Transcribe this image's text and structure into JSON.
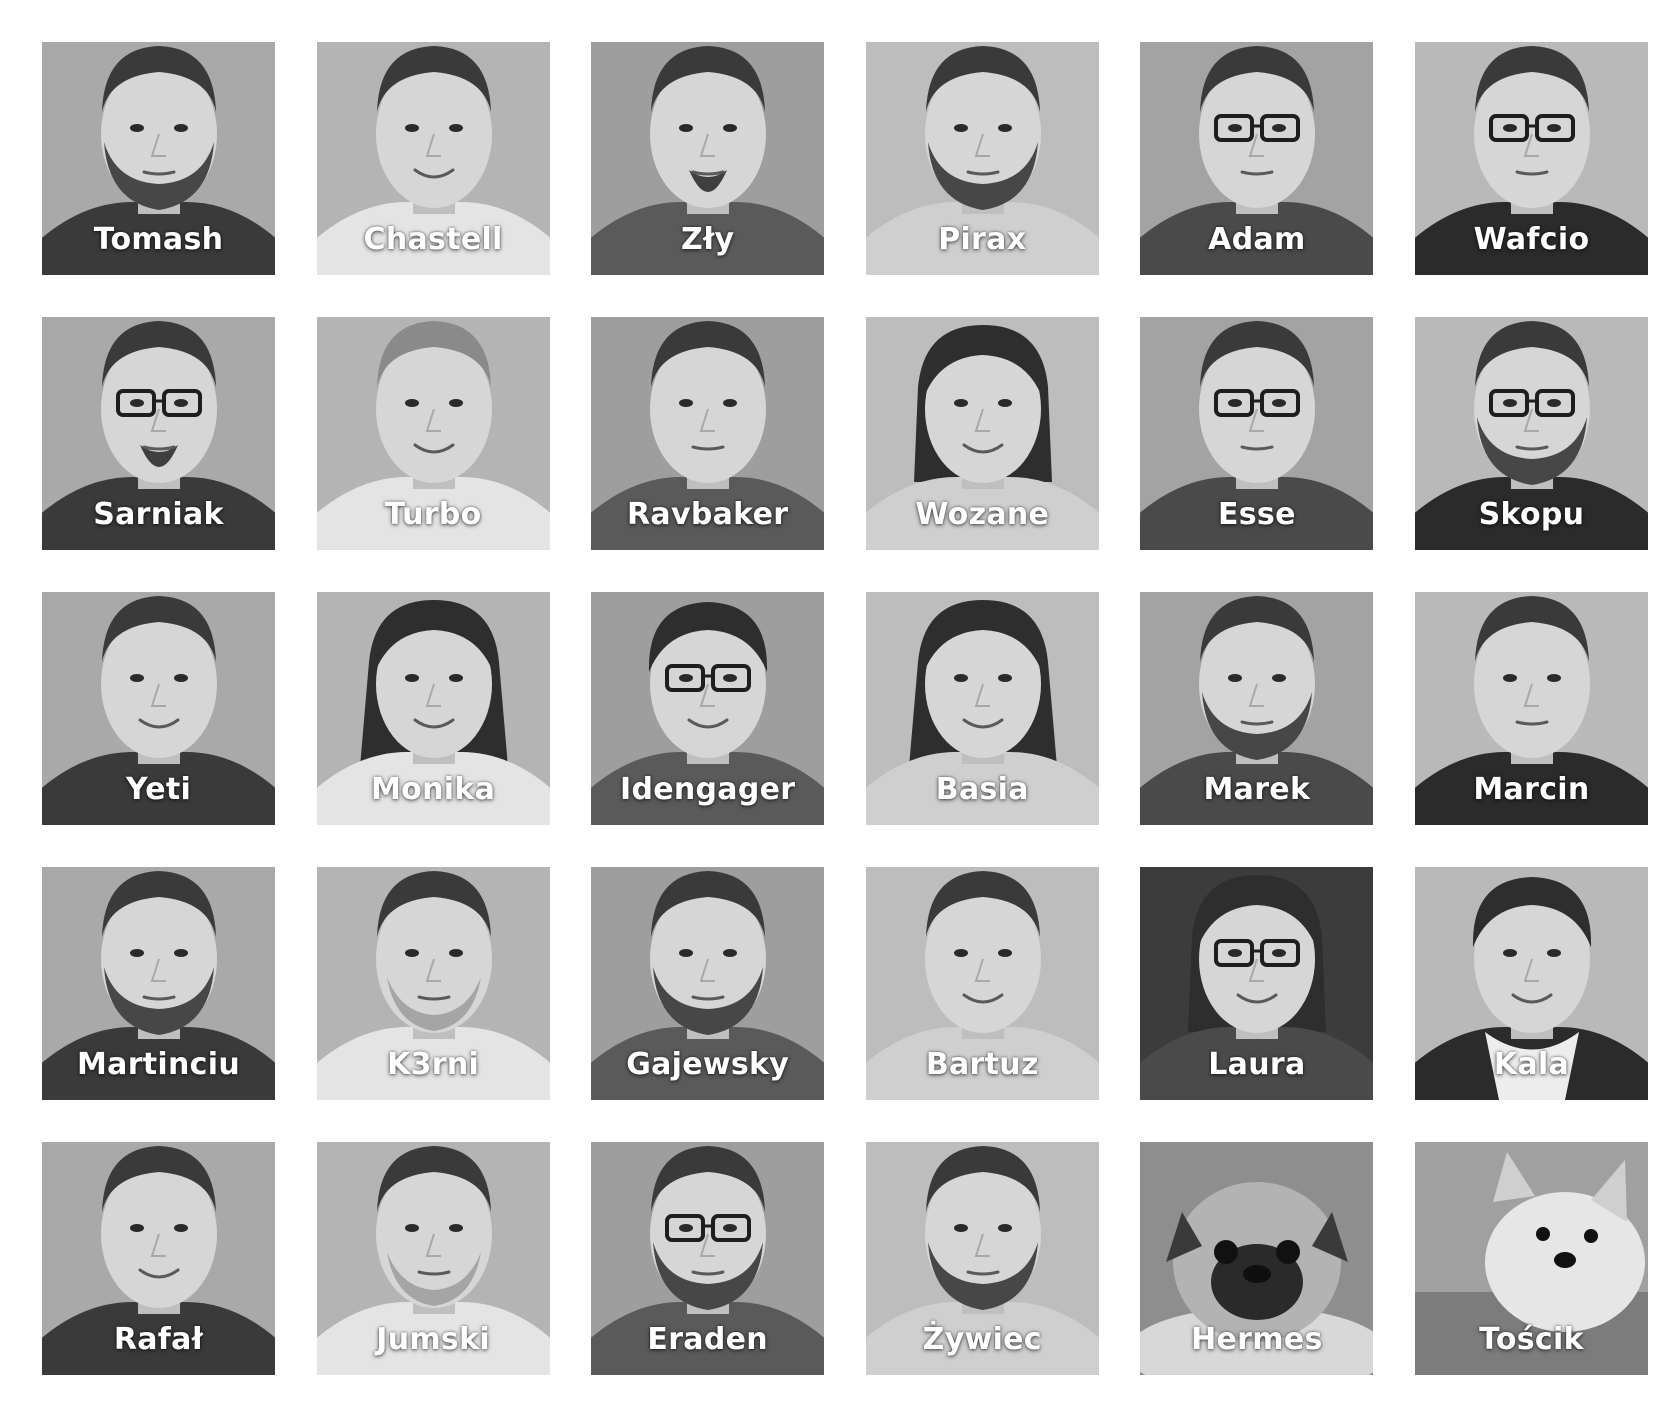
{
  "team": {
    "members": [
      {
        "name": "Tomash",
        "photo": "man-portrait-beard"
      },
      {
        "name": "Chastell",
        "photo": "man-portrait-smiling"
      },
      {
        "name": "Zły",
        "photo": "man-portrait-goatee"
      },
      {
        "name": "Pirax",
        "photo": "man-portrait-beard"
      },
      {
        "name": "Adam",
        "photo": "man-portrait-glasses"
      },
      {
        "name": "Wafcio",
        "photo": "man-portrait-glasses"
      },
      {
        "name": "Sarniak",
        "photo": "man-portrait-glasses-goatee"
      },
      {
        "name": "Turbo",
        "photo": "woman-portrait-short-hair"
      },
      {
        "name": "Ravbaker",
        "photo": "man-portrait-hoodie"
      },
      {
        "name": "Wozane",
        "photo": "woman-portrait-bob"
      },
      {
        "name": "Esse",
        "photo": "man-portrait-glasses"
      },
      {
        "name": "Skopu",
        "photo": "man-portrait-glasses-beard"
      },
      {
        "name": "Yeti",
        "photo": "man-portrait-smiling"
      },
      {
        "name": "Monika",
        "photo": "woman-portrait-long-hair"
      },
      {
        "name": "Idengager",
        "photo": "woman-portrait-glasses"
      },
      {
        "name": "Basia",
        "photo": "woman-portrait-long-hair"
      },
      {
        "name": "Marek",
        "photo": "man-portrait-beard"
      },
      {
        "name": "Marcin",
        "photo": "man-portrait-polo"
      },
      {
        "name": "Martinciu",
        "photo": "man-portrait-beard"
      },
      {
        "name": "K3rni",
        "photo": "man-portrait-stubble"
      },
      {
        "name": "Gajewsky",
        "photo": "man-portrait-beard"
      },
      {
        "name": "Bartuz",
        "photo": "man-portrait-smiling"
      },
      {
        "name": "Laura",
        "photo": "woman-portrait-glasses-dark"
      },
      {
        "name": "Kala",
        "photo": "woman-portrait-scarf"
      },
      {
        "name": "Rafał",
        "photo": "man-portrait-smiling"
      },
      {
        "name": "Jumski",
        "photo": "man-portrait-stubble"
      },
      {
        "name": "Eraden",
        "photo": "man-portrait-glasses-beard"
      },
      {
        "name": "Żywiec",
        "photo": "man-portrait-beard"
      },
      {
        "name": "Hermes",
        "photo": "pug-puppy"
      },
      {
        "name": "Tościk",
        "photo": "corgi-puppy"
      }
    ]
  }
}
